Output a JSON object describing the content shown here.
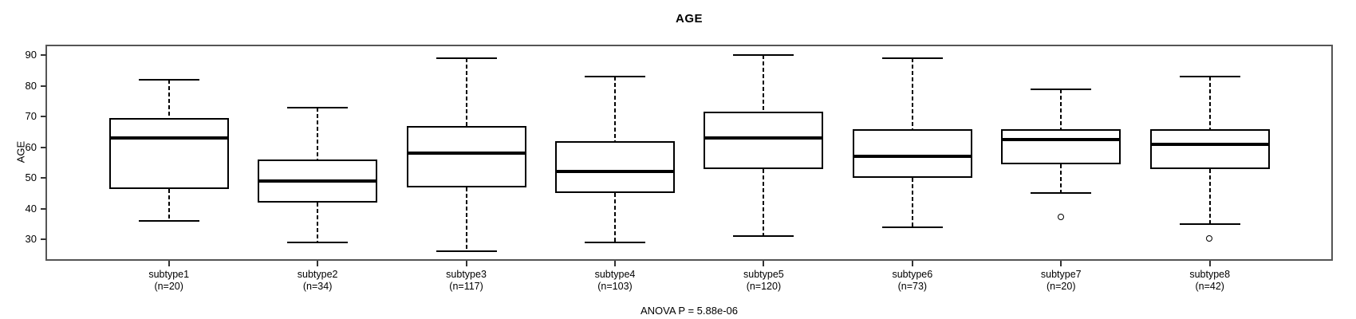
{
  "title": "AGE",
  "y_axis": {
    "label": "AGE"
  },
  "footer": {
    "text": "ANOVA P = 5.88e-06"
  },
  "chart_data": {
    "type": "boxplot",
    "title": "AGE",
    "xlabel": "",
    "ylabel": "AGE",
    "ylim": [
      23.5,
      93.2
    ],
    "yticks": [
      30,
      40,
      50,
      60,
      70,
      80,
      90
    ],
    "grid": false,
    "legend_position": "none",
    "annotation": "ANOVA P = 5.88e-06",
    "categories": [
      "subtype1",
      "subtype2",
      "subtype3",
      "subtype4",
      "subtype5",
      "subtype6",
      "subtype7",
      "subtype8"
    ],
    "sample_sizes": [
      20,
      34,
      117,
      103,
      120,
      73,
      20,
      42
    ],
    "groups": [
      {
        "label": "subtype1",
        "n": 20,
        "n_label": "(n=20)",
        "low": 36,
        "q1": 46.5,
        "median": 63,
        "q3": 69.5,
        "high": 82,
        "outliers": []
      },
      {
        "label": "subtype2",
        "n": 34,
        "n_label": "(n=34)",
        "low": 29,
        "q1": 42,
        "median": 49,
        "q3": 56,
        "high": 73,
        "outliers": []
      },
      {
        "label": "subtype3",
        "n": 117,
        "n_label": "(n=117)",
        "low": 26,
        "q1": 47,
        "median": 58,
        "q3": 67,
        "high": 89,
        "outliers": []
      },
      {
        "label": "subtype4",
        "n": 103,
        "n_label": "(n=103)",
        "low": 29,
        "q1": 45,
        "median": 52,
        "q3": 62,
        "high": 83,
        "outliers": []
      },
      {
        "label": "subtype5",
        "n": 120,
        "n_label": "(n=120)",
        "low": 31,
        "q1": 53,
        "median": 63,
        "q3": 71.5,
        "high": 90,
        "outliers": []
      },
      {
        "label": "subtype6",
        "n": 73,
        "n_label": "(n=73)",
        "low": 34,
        "q1": 50,
        "median": 57,
        "q3": 66,
        "high": 89,
        "outliers": []
      },
      {
        "label": "subtype7",
        "n": 20,
        "n_label": "(n=20)",
        "low": 45,
        "q1": 54.5,
        "median": 62.5,
        "q3": 66,
        "high": 79,
        "outliers": [
          37
        ]
      },
      {
        "label": "subtype8",
        "n": 42,
        "n_label": "(n=42)",
        "low": 35,
        "q1": 53,
        "median": 61,
        "q3": 66,
        "high": 83,
        "outliers": [
          30
        ]
      }
    ]
  }
}
